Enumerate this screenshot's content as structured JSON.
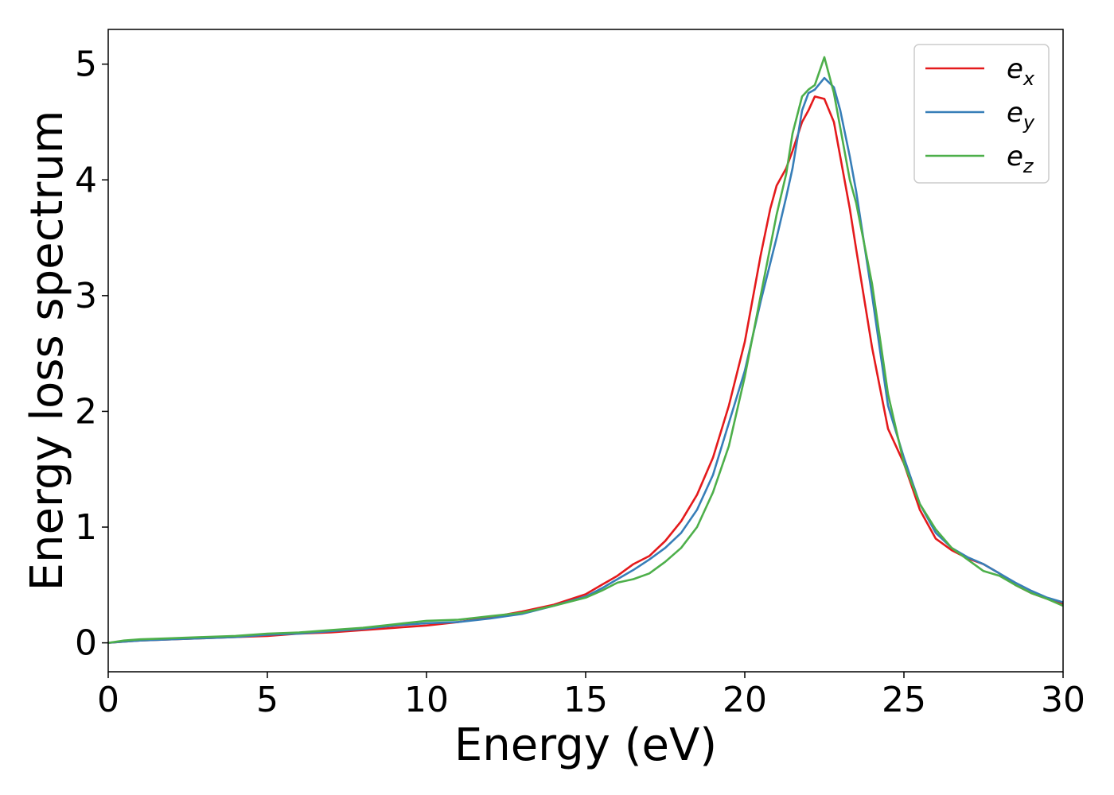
{
  "chart_data": {
    "type": "line",
    "title": "",
    "xlabel": "Energy (eV)",
    "ylabel": "Energy loss spectrum",
    "xlim": [
      0,
      30
    ],
    "ylim": [
      -0.25,
      5.3
    ],
    "xticks": [
      0,
      5,
      10,
      15,
      20,
      25,
      30
    ],
    "yticks": [
      0,
      1,
      2,
      3,
      4,
      5
    ],
    "grid": false,
    "legend_position": "top-right",
    "series": [
      {
        "name": "e",
        "subscript": "x",
        "color": "#e41a1c",
        "x": [
          0,
          0.5,
          1,
          2,
          3,
          4,
          5,
          6,
          7,
          8,
          9,
          10,
          11,
          12,
          13,
          14,
          15,
          15.5,
          16,
          16.5,
          17,
          17.5,
          18,
          18.5,
          19,
          19.5,
          20,
          20.5,
          20.8,
          21,
          21.3,
          21.5,
          21.8,
          22,
          22.2,
          22.5,
          22.8,
          23,
          23.3,
          23.5,
          24,
          24.5,
          25,
          25.5,
          26,
          26.5,
          27,
          27.5,
          28,
          28.5,
          29,
          29.5,
          30
        ],
        "y": [
          0,
          0.01,
          0.02,
          0.03,
          0.04,
          0.05,
          0.06,
          0.08,
          0.09,
          0.11,
          0.13,
          0.15,
          0.18,
          0.22,
          0.27,
          0.33,
          0.42,
          0.5,
          0.58,
          0.68,
          0.75,
          0.88,
          1.05,
          1.28,
          1.6,
          2.05,
          2.6,
          3.35,
          3.75,
          3.95,
          4.1,
          4.25,
          4.5,
          4.6,
          4.72,
          4.7,
          4.5,
          4.2,
          3.75,
          3.4,
          2.55,
          1.85,
          1.55,
          1.15,
          0.9,
          0.8,
          0.73,
          0.68,
          0.6,
          0.5,
          0.43,
          0.38,
          0.34
        ]
      },
      {
        "name": "e",
        "subscript": "y",
        "color": "#377eb8",
        "x": [
          0,
          0.5,
          1,
          2,
          3,
          4,
          5,
          6,
          7,
          8,
          9,
          10,
          11,
          12,
          13,
          14,
          15,
          15.5,
          16,
          16.5,
          17,
          17.5,
          18,
          18.5,
          19,
          19.5,
          20,
          20.5,
          21,
          21.3,
          21.5,
          21.8,
          22,
          22.2,
          22.5,
          22.8,
          23,
          23.3,
          23.5,
          24,
          24.5,
          25,
          25.5,
          26,
          26.5,
          27,
          27.5,
          28,
          28.5,
          29,
          29.5,
          30
        ],
        "y": [
          0,
          0.01,
          0.02,
          0.03,
          0.04,
          0.05,
          0.07,
          0.08,
          0.1,
          0.12,
          0.15,
          0.17,
          0.18,
          0.21,
          0.25,
          0.32,
          0.4,
          0.47,
          0.55,
          0.63,
          0.72,
          0.82,
          0.95,
          1.15,
          1.45,
          1.9,
          2.35,
          2.95,
          3.5,
          3.85,
          4.1,
          4.6,
          4.75,
          4.78,
          4.88,
          4.8,
          4.6,
          4.2,
          3.9,
          3.0,
          2.05,
          1.6,
          1.2,
          0.95,
          0.82,
          0.74,
          0.68,
          0.6,
          0.52,
          0.45,
          0.39,
          0.35
        ]
      },
      {
        "name": "e",
        "subscript": "z",
        "color": "#4daf4a",
        "x": [
          0,
          0.5,
          1,
          2,
          3,
          4,
          5,
          6,
          7,
          8,
          9,
          10,
          11,
          12,
          13,
          14,
          15,
          15.5,
          16,
          16.5,
          17,
          17.5,
          18,
          18.5,
          19,
          19.5,
          20,
          20.5,
          21,
          21.3,
          21.5,
          21.8,
          22,
          22.2,
          22.5,
          22.8,
          23,
          23.3,
          23.5,
          24,
          24.5,
          25,
          25.5,
          26,
          26.5,
          27,
          27.5,
          28,
          28.5,
          29,
          29.5,
          30
        ],
        "y": [
          0,
          0.02,
          0.03,
          0.04,
          0.05,
          0.06,
          0.08,
          0.09,
          0.11,
          0.13,
          0.16,
          0.19,
          0.2,
          0.23,
          0.26,
          0.32,
          0.39,
          0.45,
          0.52,
          0.55,
          0.6,
          0.7,
          0.82,
          1.0,
          1.3,
          1.7,
          2.3,
          3.0,
          3.7,
          4.05,
          4.4,
          4.72,
          4.78,
          4.82,
          5.06,
          4.75,
          4.45,
          4.0,
          3.8,
          3.1,
          2.15,
          1.55,
          1.2,
          0.98,
          0.82,
          0.72,
          0.62,
          0.58,
          0.5,
          0.43,
          0.38,
          0.32
        ]
      }
    ]
  }
}
